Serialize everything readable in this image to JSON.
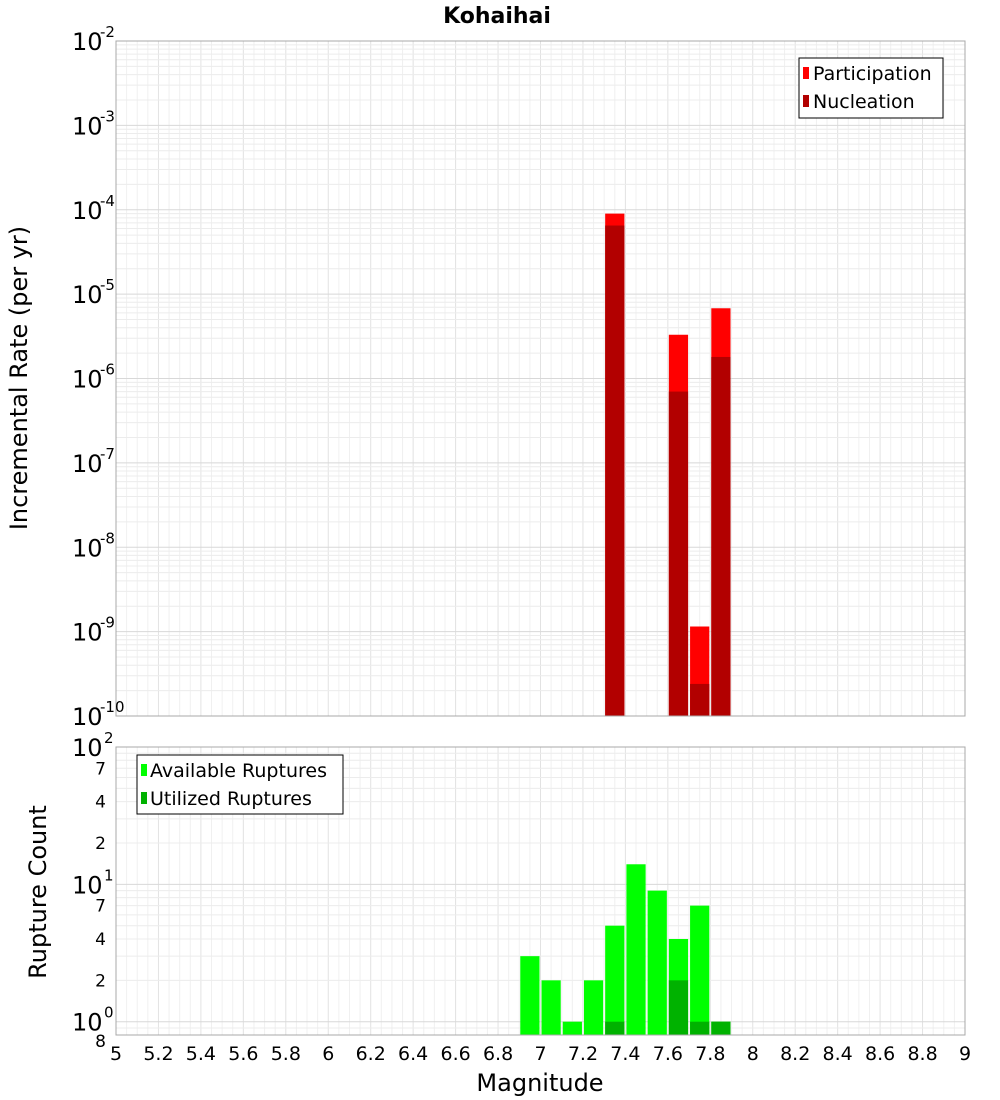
{
  "chart_data": [
    {
      "type": "bar",
      "title": "Kohaihai",
      "ylabel": "Incremental Rate (per yr)",
      "xlabel": "",
      "yscale": "log",
      "xlim": [
        5,
        9
      ],
      "ylim": [
        1e-10,
        0.01
      ],
      "y_ticks": [
        {
          "base": "10",
          "exp": "-10"
        },
        {
          "base": "10",
          "exp": "-9"
        },
        {
          "base": "10",
          "exp": "-8"
        },
        {
          "base": "10",
          "exp": "-7"
        },
        {
          "base": "10",
          "exp": "-6"
        },
        {
          "base": "10",
          "exp": "-5"
        },
        {
          "base": "10",
          "exp": "-4"
        },
        {
          "base": "10",
          "exp": "-3"
        },
        {
          "base": "10",
          "exp": "-2"
        }
      ],
      "bin_width": 0.1,
      "legend_position": "top-right",
      "grid": true,
      "series": [
        {
          "name": "Participation",
          "color": "#ff0000",
          "x": [
            7.35,
            7.65,
            7.75,
            7.85
          ],
          "values": [
            9e-05,
            3.3e-06,
            1.15e-09,
            6.8e-06
          ]
        },
        {
          "name": "Nucleation",
          "color": "#b20000",
          "x": [
            7.35,
            7.65,
            7.75,
            7.85
          ],
          "values": [
            6.5e-05,
            7e-07,
            2.4e-10,
            1.8e-06
          ]
        }
      ]
    },
    {
      "type": "bar",
      "title": "",
      "ylabel": "Rupture Count",
      "xlabel": "Magnitude",
      "yscale": "log",
      "xlim": [
        5,
        9
      ],
      "ylim": [
        0.8,
        100
      ],
      "bin_width": 0.1,
      "x_ticks": [
        "5",
        "5.2",
        "5.4",
        "5.6",
        "5.8",
        "6",
        "6.2",
        "6.4",
        "6.6",
        "6.8",
        "7",
        "7.2",
        "7.4",
        "7.6",
        "7.8",
        "8",
        "8.2",
        "8.4",
        "8.6",
        "8.8",
        "9"
      ],
      "y_major_ticks": [
        {
          "base": "10",
          "exp": "0"
        },
        {
          "base": "10",
          "exp": "1"
        },
        {
          "base": "10",
          "exp": "2"
        }
      ],
      "y_minor_ticks": [
        "8",
        "2",
        "4",
        "7",
        "2",
        "4",
        "7"
      ],
      "legend_position": "top-left",
      "grid": true,
      "series": [
        {
          "name": "Available Ruptures",
          "color": "#00ff00",
          "x": [
            6.95,
            7.05,
            7.15,
            7.25,
            7.35,
            7.45,
            7.55,
            7.65,
            7.75,
            7.85
          ],
          "values": [
            3,
            2,
            1,
            2,
            5,
            14,
            9,
            4,
            7,
            1
          ]
        },
        {
          "name": "Utilized Ruptures",
          "color": "#00b200",
          "x": [
            7.35,
            7.65,
            7.75,
            7.85
          ],
          "values": [
            1,
            2,
            1,
            1
          ]
        }
      ]
    }
  ]
}
